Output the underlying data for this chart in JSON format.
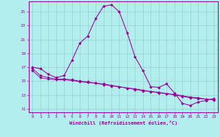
{
  "xlabel": "Windchill (Refroidissement éolien,°C)",
  "hours": [
    0,
    1,
    2,
    3,
    4,
    5,
    6,
    7,
    8,
    9,
    10,
    11,
    12,
    13,
    14,
    15,
    16,
    17,
    18,
    19,
    20,
    21,
    22,
    23
  ],
  "temp_curve": [
    17.0,
    16.8,
    16.0,
    15.5,
    15.8,
    18.0,
    20.5,
    21.5,
    24.0,
    25.8,
    26.0,
    25.0,
    22.0,
    18.5,
    16.5,
    14.2,
    14.1,
    14.6,
    13.3,
    11.8,
    11.5,
    12.0,
    12.2,
    12.5
  ],
  "ref_line1": [
    16.5,
    15.5,
    15.3,
    15.2,
    15.2,
    15.1,
    14.9,
    14.8,
    14.7,
    14.5,
    14.3,
    14.2,
    14.0,
    13.8,
    13.6,
    13.5,
    13.3,
    13.2,
    13.0,
    12.8,
    12.6,
    12.5,
    12.4,
    12.3
  ],
  "ref_line2": [
    16.8,
    15.8,
    15.5,
    15.3,
    15.3,
    15.2,
    15.0,
    14.9,
    14.7,
    14.6,
    14.4,
    14.2,
    14.0,
    13.9,
    13.7,
    13.5,
    13.4,
    13.2,
    13.1,
    12.9,
    12.7,
    12.6,
    12.4,
    12.3
  ],
  "line_color": "#990099",
  "bg_color": "#b2eeee",
  "grid_color": "#99cccc",
  "ylim": [
    10.5,
    26.5
  ],
  "yticks": [
    11,
    13,
    15,
    17,
    19,
    21,
    23,
    25
  ],
  "xlim": [
    -0.5,
    23.5
  ]
}
